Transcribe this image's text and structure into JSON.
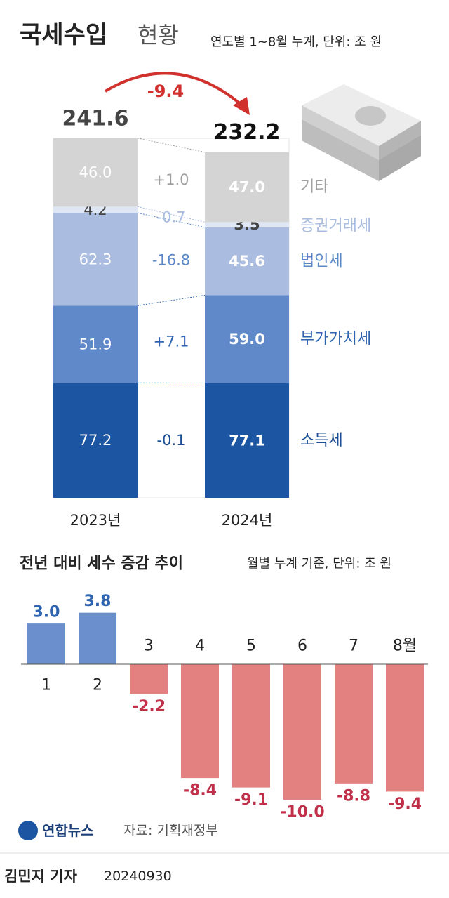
{
  "chart_data": [
    {
      "type": "bar",
      "stacked": true,
      "title": "국세수입",
      "subtitle": "현황",
      "note": "연도별 1~8월 누계, 단위: 조 원",
      "categories": [
        "2023년",
        "2024년"
      ],
      "series": [
        {
          "name": "소득세",
          "color": "#1c56a2",
          "text_color": "#ffffff",
          "label_color": "#1c4f96",
          "values": [
            77.2,
            77.1
          ],
          "value_labels": [
            "77.2",
            "77.1"
          ]
        },
        {
          "name": "부가가치세",
          "color": "#5f89c9",
          "text_color": "#ffffff",
          "label_color": "#2f64b0",
          "values": [
            51.9,
            59.0
          ],
          "value_labels": [
            "51.9",
            "59.0"
          ]
        },
        {
          "name": "법인세",
          "color": "#aabce0",
          "text_color": "#ffffff",
          "label_color": "#5b87c8",
          "values": [
            62.3,
            45.6
          ],
          "value_labels": [
            "62.3",
            "45.6"
          ]
        },
        {
          "name": "증권거래세",
          "color": "#dfe7f4",
          "text_color": "#444444",
          "label_color": "#a9bde0",
          "values": [
            4.2,
            3.5
          ],
          "value_labels": [
            "4.2",
            "3.5"
          ]
        },
        {
          "name": "기타",
          "color": "#d4d4d4",
          "text_color": "#ffffff",
          "label_color": "#a0a0a0",
          "values": [
            46.0,
            47.0
          ],
          "value_labels": [
            "46.0",
            "47.0"
          ]
        }
      ],
      "changes": {
        "values": [
          -0.1,
          7.1,
          -16.8,
          -0.7,
          1.0
        ],
        "value_labels": [
          "-0.1",
          "+7.1",
          "-16.8",
          "-0.7",
          "+1.0"
        ]
      },
      "totals": [
        241.6,
        232.2
      ],
      "total_change": -9.4,
      "arrow_color": "#d0312d"
    },
    {
      "type": "bar",
      "title": "전년 대비 세수 증감 추이",
      "note": "월별 누계 기준, 단위: 조 원",
      "categories": [
        "1",
        "2",
        "3",
        "4",
        "5",
        "6",
        "7",
        "8월"
      ],
      "values": [
        3.0,
        3.8,
        -2.2,
        -8.4,
        -9.1,
        -10.0,
        -8.8,
        -9.4
      ],
      "value_labels": [
        "3.0",
        "3.8",
        "-2.2",
        "-8.4",
        "-9.1",
        "-10.0",
        "-8.8",
        "-9.4"
      ],
      "positive_color": "#6a8fcc",
      "negative_color": "#e38080",
      "positive_label_color": "#2f64b0",
      "negative_label_color": "#c0304a"
    }
  ],
  "footer": {
    "logo": "연합뉴스",
    "source": "자료: 기획재정부",
    "byline": "김민지 기자",
    "date": "20240930"
  }
}
